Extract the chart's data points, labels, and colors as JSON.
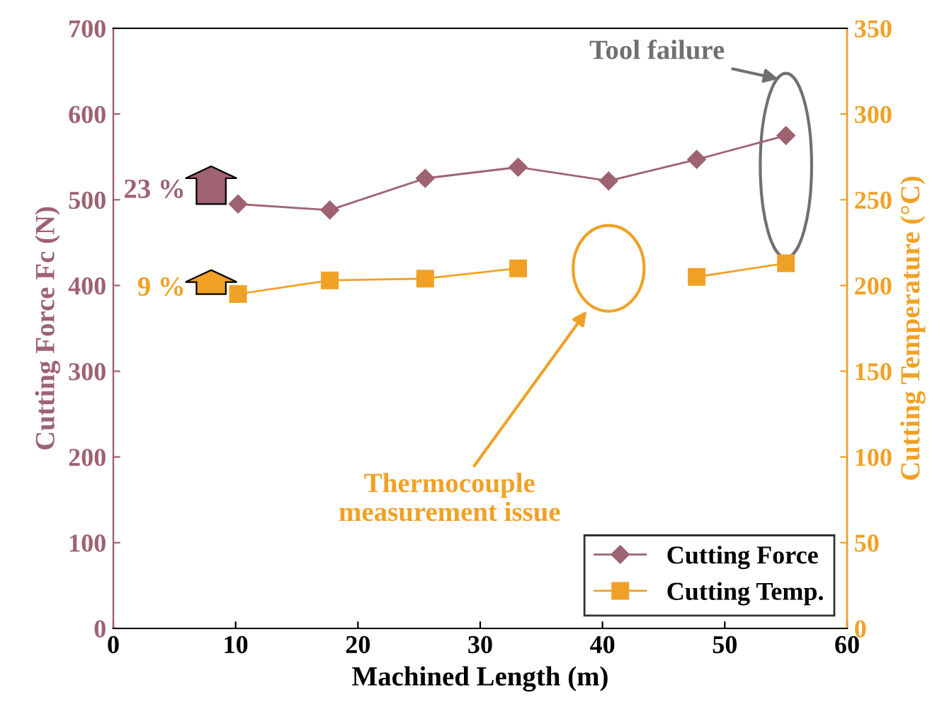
{
  "chart_data": {
    "type": "line",
    "xlabel": "Machined Length (m)",
    "ylabel": "Cutting Force Fc (N)",
    "y2label": "Cutting Temperature (°C)",
    "xlim": [
      0,
      60
    ],
    "xticks": [
      0,
      10,
      20,
      30,
      40,
      50,
      60
    ],
    "ylim": [
      0,
      700
    ],
    "yticks": [
      0,
      100,
      200,
      300,
      400,
      500,
      600,
      700
    ],
    "y2lim": [
      0,
      350
    ],
    "y2ticks": [
      0,
      50,
      100,
      150,
      200,
      250,
      300,
      350
    ],
    "grid": false,
    "legend": "bottom right",
    "series": [
      {
        "name": "Cutting Force",
        "color": "#9e6270",
        "marker": "diamond",
        "axis": "y",
        "x": [
          10.2,
          17.7,
          25.5,
          33.1,
          40.5,
          47.7,
          55.0
        ],
        "values": [
          495,
          488,
          525,
          538,
          522,
          547,
          575
        ]
      },
      {
        "name": "Cutting Temp.",
        "color": "#f0a125",
        "marker": "square",
        "axis": "y2",
        "x": [
          10.2,
          17.7,
          25.5,
          33.1,
          40.5,
          47.7,
          55.0
        ],
        "values": [
          195,
          203,
          204,
          210,
          null,
          205,
          213
        ]
      }
    ],
    "annotations": [
      "23 %",
      "9 %",
      "Tool failure",
      "Thermocouple\nmeasurement issue"
    ]
  }
}
